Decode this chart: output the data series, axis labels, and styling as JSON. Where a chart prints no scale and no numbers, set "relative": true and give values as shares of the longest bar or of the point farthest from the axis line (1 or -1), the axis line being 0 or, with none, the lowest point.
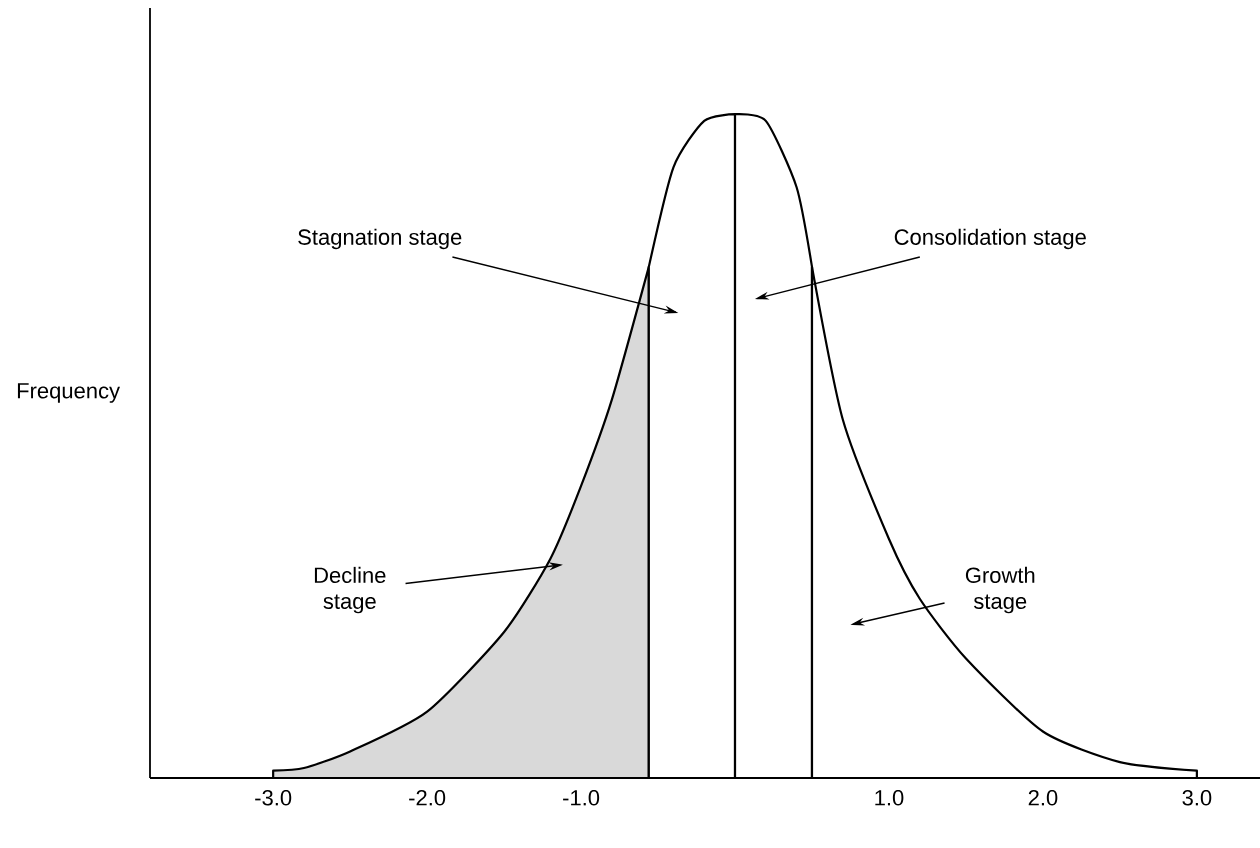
{
  "chart_data": {
    "type": "area",
    "relative": true,
    "ylabel": "Frequency",
    "xlim": [
      -3.8,
      3.41
    ],
    "xticks": [
      {
        "value": -3,
        "label": "-3.0"
      },
      {
        "value": -2,
        "label": "-2.0"
      },
      {
        "value": -1,
        "label": "-1.0"
      },
      {
        "value": 1,
        "label": "1.0"
      },
      {
        "value": 2,
        "label": "2.0"
      },
      {
        "value": 3,
        "label": "3.0"
      }
    ],
    "series": [
      {
        "color": "#d9d9d9",
        "x": [
          -3.0,
          -2.8,
          -2.5,
          -2.0,
          -1.5,
          -1.2,
          -1.0,
          -0.8,
          -0.56
        ],
        "values": [
          0.011,
          0.015,
          0.04,
          0.1,
          0.22,
          0.33,
          0.44,
          0.57,
          0.77
        ]
      },
      {
        "color": "#ffffff",
        "x": [
          -0.56,
          -0.4,
          -0.2,
          0
        ],
        "values": [
          0.77,
          0.92,
          0.99,
          1
        ]
      },
      {
        "color": "#ffffff",
        "x": [
          0,
          0.2,
          0.4,
          0.5
        ],
        "values": [
          1,
          0.99,
          0.89,
          0.77
        ]
      },
      {
        "color": "#ffffff",
        "x": [
          0.5,
          0.7,
          1.0,
          1.2,
          1.5,
          2.0,
          2.5,
          3.0
        ],
        "values": [
          0.77,
          0.54,
          0.36,
          0.27,
          0.18,
          0.07,
          0.024,
          0.011
        ]
      }
    ],
    "annotations": [
      "Decline stage",
      "Stagnation stage",
      "Consolidation stage",
      "Growth stage"
    ]
  }
}
